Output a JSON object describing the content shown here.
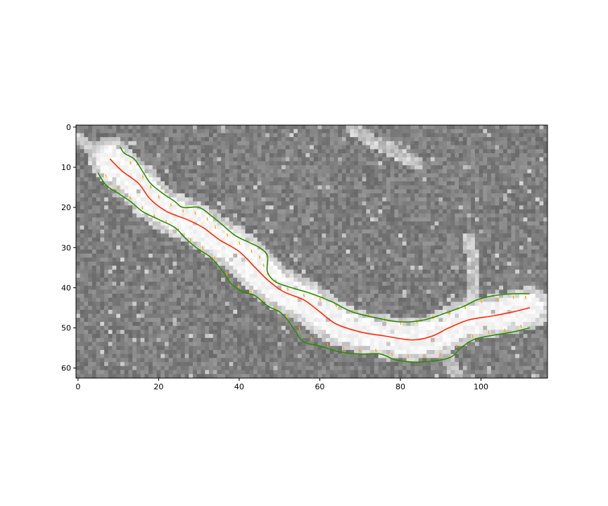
{
  "chart_data": {
    "type": "image",
    "image_width": 117,
    "image_height": 63,
    "xlim": [
      -0.5,
      116.5
    ],
    "ylim": [
      62.5,
      -0.5
    ],
    "x_ticks": [
      0,
      20,
      40,
      60,
      80,
      100
    ],
    "y_ticks": [
      0,
      10,
      20,
      30,
      40,
      50,
      60
    ],
    "x_tick_labels": [
      "0",
      "20",
      "40",
      "60",
      "80",
      "100"
    ],
    "y_tick_labels": [
      "0",
      "10",
      "20",
      "30",
      "40",
      "50",
      "60"
    ],
    "colormap": "gray",
    "series": [
      {
        "kind": "centerline",
        "color": "#ff2a00",
        "points": [
          [
            8,
            8
          ],
          [
            11,
            11
          ],
          [
            15,
            14
          ],
          [
            18,
            18
          ],
          [
            22,
            21
          ],
          [
            27,
            23
          ],
          [
            31,
            25
          ],
          [
            35,
            28
          ],
          [
            40,
            31
          ],
          [
            44,
            35
          ],
          [
            47,
            38
          ],
          [
            51,
            41
          ],
          [
            56,
            43
          ],
          [
            60,
            46
          ],
          [
            64,
            49
          ],
          [
            70,
            51
          ],
          [
            76,
            52
          ],
          [
            83,
            53
          ],
          [
            88,
            52
          ],
          [
            92,
            50
          ],
          [
            97,
            48
          ],
          [
            103,
            47
          ],
          [
            108,
            46
          ],
          [
            112,
            45
          ]
        ]
      },
      {
        "kind": "upper-edge",
        "color": "#2e8b00",
        "points": [
          [
            10.5,
            5
          ],
          [
            11.5,
            6.5
          ],
          [
            14,
            8
          ],
          [
            16,
            11
          ],
          [
            18,
            14
          ],
          [
            21,
            16.5
          ],
          [
            24,
            18.5
          ],
          [
            26,
            20
          ],
          [
            30,
            20
          ],
          [
            33,
            22
          ],
          [
            36,
            24.5
          ],
          [
            39,
            27
          ],
          [
            42,
            28.5
          ],
          [
            45,
            30
          ],
          [
            47,
            32
          ],
          [
            47,
            36
          ],
          [
            49,
            38.5
          ],
          [
            53,
            40
          ],
          [
            58,
            41.5
          ],
          [
            63,
            43.5
          ],
          [
            68,
            46
          ],
          [
            74,
            47.5
          ],
          [
            80,
            48.5
          ],
          [
            86,
            48
          ],
          [
            92,
            46
          ],
          [
            96,
            44.5
          ],
          [
            99,
            43
          ],
          [
            103,
            42
          ],
          [
            108,
            41.5
          ],
          [
            112,
            41.5
          ]
        ]
      },
      {
        "kind": "lower-edge",
        "color": "#2e8b00",
        "points": [
          [
            5,
            11.5
          ],
          [
            7,
            14.5
          ],
          [
            10,
            16.5
          ],
          [
            13,
            18.5
          ],
          [
            16,
            21
          ],
          [
            20,
            23
          ],
          [
            24,
            25
          ],
          [
            27,
            28
          ],
          [
            30,
            30.5
          ],
          [
            33,
            32.5
          ],
          [
            36,
            36
          ],
          [
            38,
            39
          ],
          [
            41,
            41
          ],
          [
            44,
            42
          ],
          [
            47,
            44.5
          ],
          [
            50,
            46
          ],
          [
            52,
            48
          ],
          [
            54,
            51
          ],
          [
            56,
            53.5
          ],
          [
            60,
            54.5
          ],
          [
            65,
            56
          ],
          [
            70,
            56.5
          ],
          [
            75,
            56.5
          ],
          [
            79,
            58
          ],
          [
            85,
            58.5
          ],
          [
            92,
            57.5
          ],
          [
            95,
            55
          ],
          [
            98,
            53
          ],
          [
            102,
            52
          ],
          [
            108,
            51
          ],
          [
            112,
            50
          ]
        ]
      },
      {
        "kind": "normals-upper",
        "color": "#ffa500",
        "points": [
          [
            13,
            8.5
          ],
          [
            16,
            12
          ],
          [
            18,
            14.5
          ],
          [
            20,
            17
          ],
          [
            23,
            19
          ],
          [
            26,
            20.5
          ],
          [
            29,
            21
          ],
          [
            32,
            22.5
          ],
          [
            34,
            24.5
          ],
          [
            37,
            26.5
          ],
          [
            40,
            28.5
          ],
          [
            43,
            30.5
          ],
          [
            45,
            32
          ],
          [
            46,
            34
          ],
          [
            47,
            36
          ],
          [
            49,
            38
          ],
          [
            52,
            40
          ],
          [
            56,
            41.5
          ],
          [
            60,
            42.5
          ],
          [
            64,
            44
          ],
          [
            68,
            45.5
          ],
          [
            72,
            46.5
          ],
          [
            76,
            47.5
          ],
          [
            80,
            48.5
          ],
          [
            84,
            48
          ],
          [
            88,
            47
          ],
          [
            92,
            46
          ],
          [
            96,
            44.5
          ],
          [
            100,
            43
          ],
          [
            104,
            42.5
          ],
          [
            108,
            42
          ],
          [
            111,
            42
          ]
        ]
      },
      {
        "kind": "normals-lower",
        "color": "#ffa500",
        "points": [
          [
            7,
            12.5
          ],
          [
            10,
            15.5
          ],
          [
            13,
            18
          ],
          [
            16,
            20.5
          ],
          [
            19,
            22.5
          ],
          [
            22,
            24
          ],
          [
            25,
            26
          ],
          [
            28,
            28.5
          ],
          [
            31,
            30.5
          ],
          [
            34,
            33
          ],
          [
            37,
            37
          ],
          [
            40,
            40
          ],
          [
            43,
            41.5
          ],
          [
            46,
            43.5
          ],
          [
            49,
            45.5
          ],
          [
            52,
            47.5
          ],
          [
            55,
            50.5
          ],
          [
            58,
            53
          ],
          [
            62,
            54.5
          ],
          [
            66,
            55.5
          ],
          [
            70,
            56
          ],
          [
            74,
            56
          ],
          [
            78,
            57
          ],
          [
            82,
            57.5
          ],
          [
            86,
            57.5
          ],
          [
            90,
            57
          ],
          [
            94,
            55
          ],
          [
            98,
            52.5
          ],
          [
            102,
            51.5
          ],
          [
            106,
            51
          ],
          [
            110,
            50
          ]
        ]
      }
    ]
  }
}
